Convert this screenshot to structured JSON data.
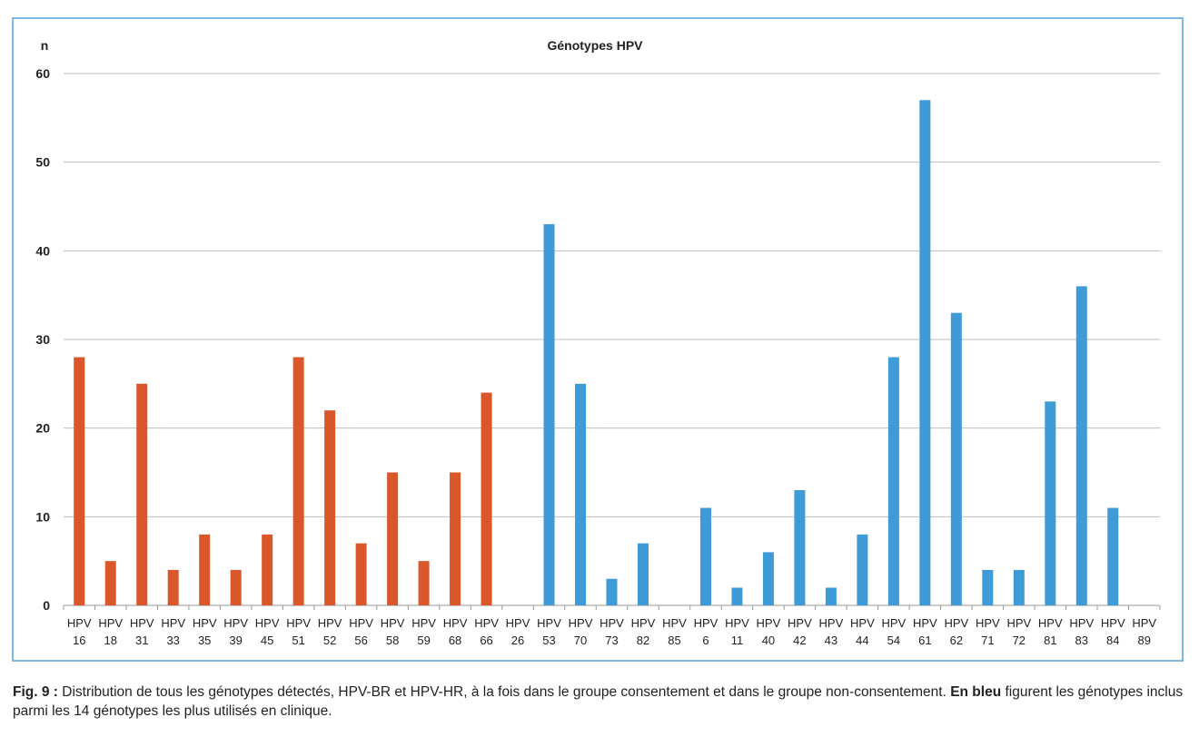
{
  "chart_data": {
    "type": "bar",
    "title": "Génotypes HPV",
    "ylabel": "n",
    "ylim": [
      0,
      60
    ],
    "yticks": [
      0,
      10,
      20,
      30,
      40,
      50,
      60
    ],
    "grid": true,
    "categories": [
      "HPV 16",
      "HPV 18",
      "HPV 31",
      "HPV 33",
      "HPV 35",
      "HPV 39",
      "HPV 45",
      "HPV 51",
      "HPV 52",
      "HPV 56",
      "HPV 58",
      "HPV 59",
      "HPV 68",
      "HPV 66",
      "HPV 26",
      "HPV 53",
      "HPV 70",
      "HPV 73",
      "HPV 82",
      "HPV 85",
      "HPV 6",
      "HPV 11",
      "HPV 40",
      "HPV 42",
      "HPV 43",
      "HPV 44",
      "HPV 54",
      "HPV 61",
      "HPV 62",
      "HPV 71",
      "HPV 72",
      "HPV 81",
      "HPV 83",
      "HPV 84",
      "HPV 89"
    ],
    "values": [
      28,
      5,
      25,
      4,
      8,
      4,
      8,
      28,
      22,
      7,
      15,
      5,
      15,
      24,
      0,
      43,
      25,
      3,
      7,
      0,
      11,
      2,
      6,
      13,
      2,
      8,
      28,
      57,
      33,
      4,
      4,
      23,
      36,
      11,
      0
    ],
    "bar_colors": [
      "#d9572b",
      "#d9572b",
      "#d9572b",
      "#d9572b",
      "#d9572b",
      "#d9572b",
      "#d9572b",
      "#d9572b",
      "#d9572b",
      "#d9572b",
      "#d9572b",
      "#d9572b",
      "#d9572b",
      "#d9572b",
      "#d9572b",
      "#3f9ad8",
      "#3f9ad8",
      "#3f9ad8",
      "#3f9ad8",
      "#3f9ad8",
      "#3f9ad8",
      "#3f9ad8",
      "#3f9ad8",
      "#3f9ad8",
      "#3f9ad8",
      "#3f9ad8",
      "#3f9ad8",
      "#3f9ad8",
      "#3f9ad8",
      "#3f9ad8",
      "#3f9ad8",
      "#3f9ad8",
      "#3f9ad8",
      "#3f9ad8",
      "#3f9ad8"
    ],
    "colors": {
      "orange": "#d9572b",
      "blue": "#3f9ad8",
      "frame": "#7fb7e3",
      "grid": "#bdbdbd"
    }
  },
  "caption": {
    "fig_label": "Fig. 9 :",
    "text_part1": " Distribution de tous les génotypes détectés, HPV-BR et HPV-HR, à la fois dans le groupe consentement et dans le groupe non-consentement. ",
    "bold_part": "En bleu",
    "text_part2": " figurent les génotypes inclus parmi les 14 génotypes les plus utilisés en clinique."
  }
}
